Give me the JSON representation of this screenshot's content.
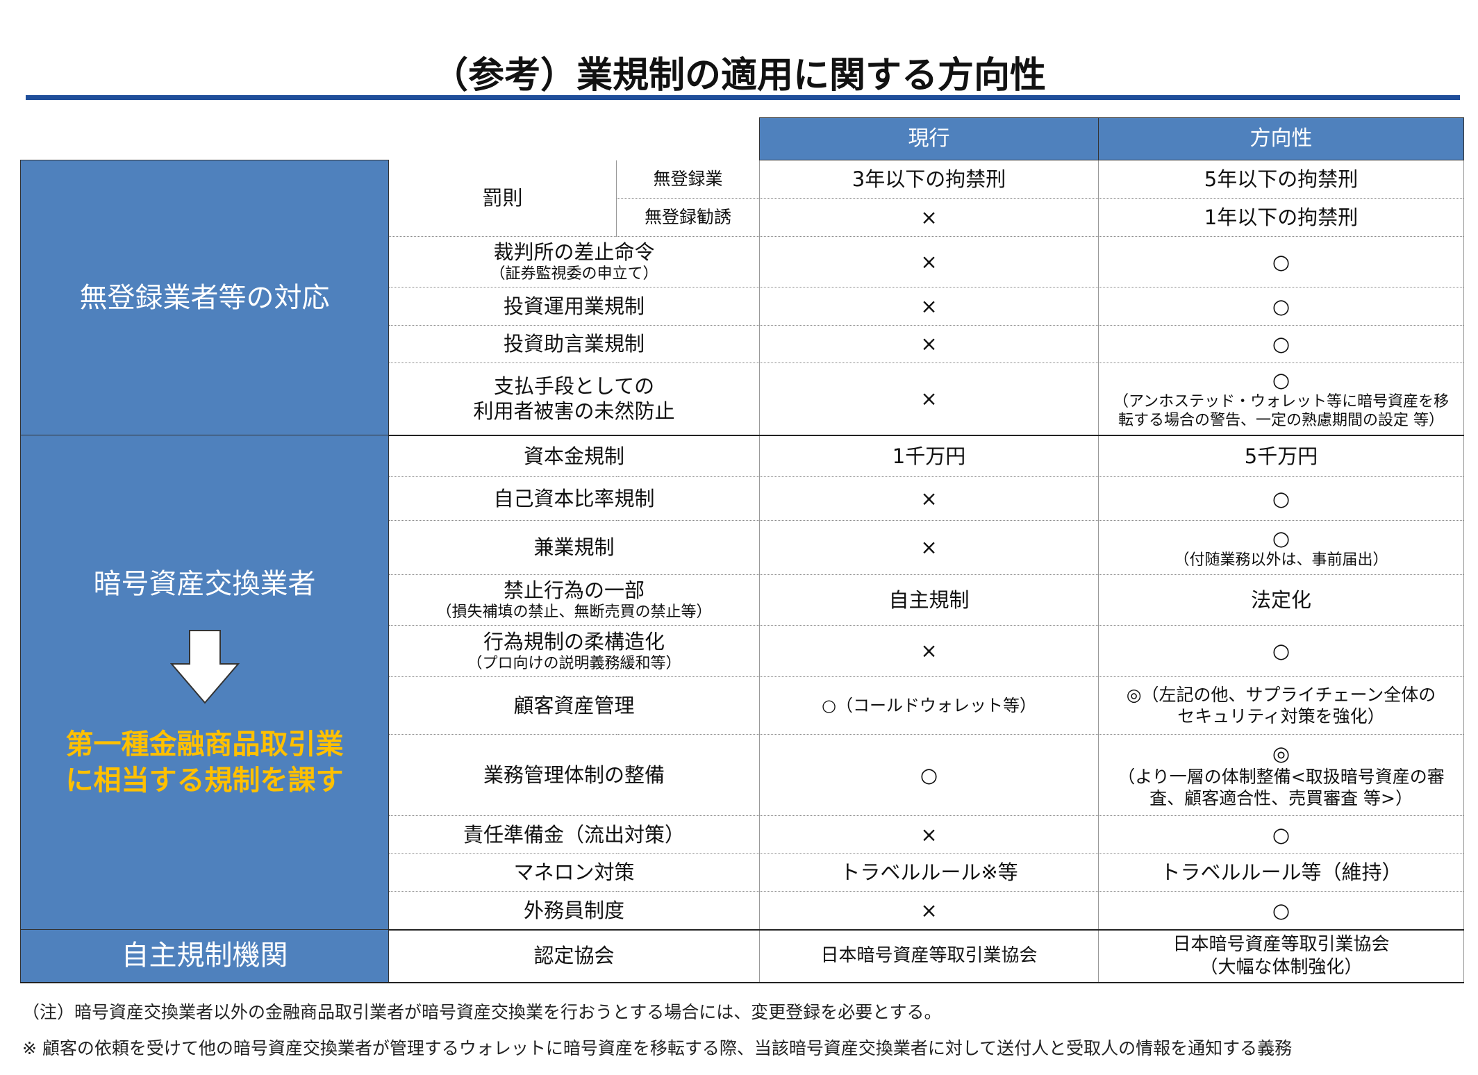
{
  "title": "（参考）業規制の適用に関する方向性",
  "header": {
    "current": "現行",
    "direction": "方向性"
  },
  "sections": {
    "s1": "無登録業者等の対応",
    "s2": "暗号資産交換業者",
    "s2_result_line1": "第一種金融商品取引業",
    "s2_result_line2": "に相当する規制を課す",
    "s3": "自主規制機関"
  },
  "rows": [
    {
      "item": "罰則",
      "sub": "無登録業",
      "current": "3年以下の拘禁刑",
      "direction": "5年以下の拘禁刑"
    },
    {
      "sub": "無登録勧誘",
      "current": "×",
      "direction": "1年以下の拘禁刑"
    },
    {
      "item": "裁判所の差止命令",
      "note": "（証券監視委の申立て）",
      "current": "×",
      "direction": "○"
    },
    {
      "item": "投資運用業規制",
      "current": "×",
      "direction": "○"
    },
    {
      "item": "投資助言業規制",
      "current": "×",
      "direction": "○"
    },
    {
      "item": "支払手段としての",
      "item2": "利用者被害の未然防止",
      "current": "×",
      "direction": "○",
      "direction_note": "（アンホステッド・ウォレット等に暗号資産を移転する場合の警告、一定の熟慮期間の設定 等）"
    },
    {
      "item": "資本金規制",
      "current": "1千万円",
      "direction": "5千万円"
    },
    {
      "item": "自己資本比率規制",
      "current": "×",
      "direction": "○"
    },
    {
      "item": "兼業規制",
      "current": "×",
      "direction": "○",
      "direction_note": "（付随業務以外は、事前届出）"
    },
    {
      "item": "禁止行為の一部",
      "note": "（損失補填の禁止、無断売買の禁止等）",
      "current": "自主規制",
      "direction": "法定化"
    },
    {
      "item": "行為規制の柔構造化",
      "note": "（プロ向けの説明義務緩和等）",
      "current": "×",
      "direction": "○"
    },
    {
      "item": "顧客資産管理",
      "current": "○（コールドウォレット等）",
      "direction": "◎（左記の他、サプライチェーン全体のセキュリティ対策を強化）"
    },
    {
      "item": "業務管理体制の整備",
      "current": "○",
      "direction": "◎",
      "direction_note": "（より一層の体制整備<取扱暗号資産の審査、顧客適合性、売買審査 等>）"
    },
    {
      "item": "責任準備金（流出対策）",
      "current": "×",
      "direction": "○"
    },
    {
      "item": "マネロン対策",
      "current": "トラベルルール※等",
      "direction": "トラベルルール等（維持）"
    },
    {
      "item": "外務員制度",
      "current": "×",
      "direction": "○"
    },
    {
      "item": "認定協会",
      "current": "日本暗号資産等取引業協会",
      "direction": "日本暗号資産等取引業協会",
      "direction_note": "（大幅な体制強化）"
    }
  ],
  "footnotes": [
    "（注）暗号資産交換業者以外の金融商品取引業者が暗号資産交換業を行おうとする場合には、変更登録を必要とする。",
    "※ 顧客の依頼を受けて他の暗号資産交換業者が管理するウォレットに暗号資産を移転する際、当該暗号資産交換業者に対して送付人と受取人の情報を通知する義務"
  ],
  "colors": {
    "header_blue": "#4f81bd",
    "rule_blue": "#1f4e9a",
    "highlight_yellow": "#ffc000"
  }
}
